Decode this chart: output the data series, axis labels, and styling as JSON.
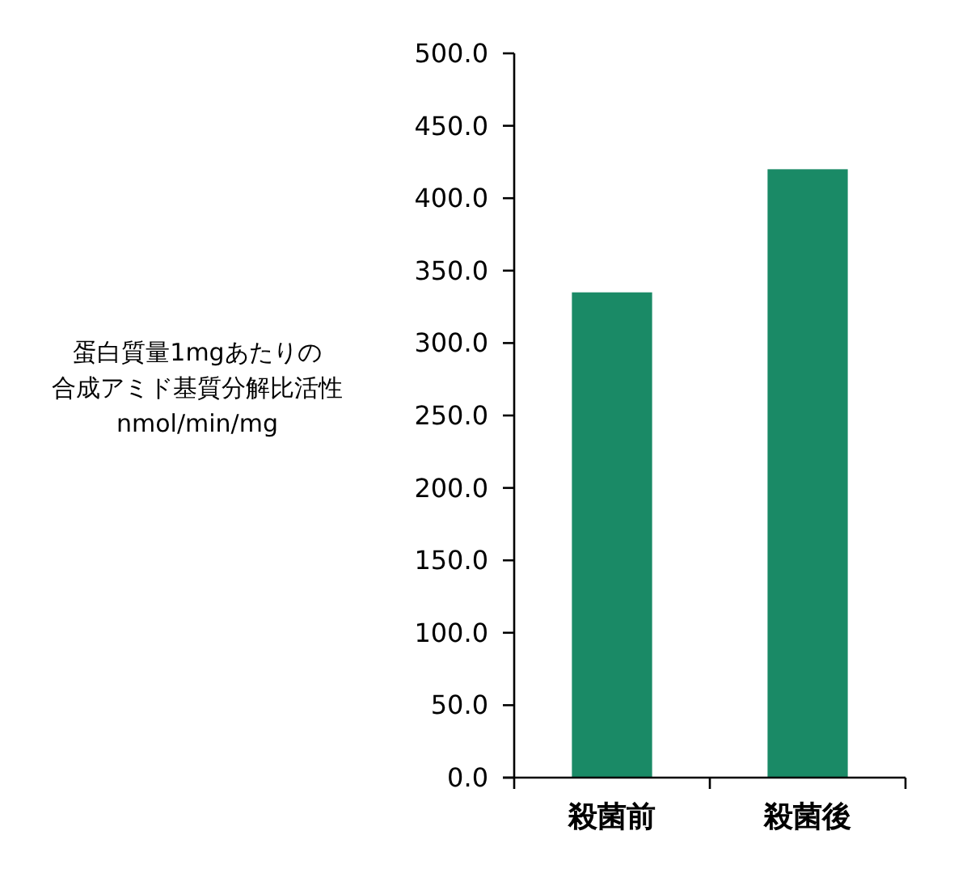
{
  "chart_data": {
    "type": "bar",
    "ylabel": "蛋白質量1mgあたりの合成アミド基質分解比活性\nnmol/min/mg",
    "categories": [
      "殺菌前",
      "殺菌後"
    ],
    "values": [
      335,
      420
    ],
    "color": "#1a8a66",
    "ylim": [
      0,
      500
    ],
    "yticks": [
      {
        "value": 0,
        "label": "0.0"
      },
      {
        "value": 50,
        "label": "50.0"
      },
      {
        "value": 100,
        "label": "100.0"
      },
      {
        "value": 150,
        "label": "150.0"
      },
      {
        "value": 200,
        "label": "200.0"
      },
      {
        "value": 250,
        "label": "250.0"
      },
      {
        "value": 300,
        "label": "300.0"
      },
      {
        "value": 350,
        "label": "350.0"
      },
      {
        "value": 400,
        "label": "400.0"
      },
      {
        "value": 450,
        "label": "450.0"
      },
      {
        "value": 500,
        "label": "500.0"
      }
    ],
    "grid": false
  }
}
